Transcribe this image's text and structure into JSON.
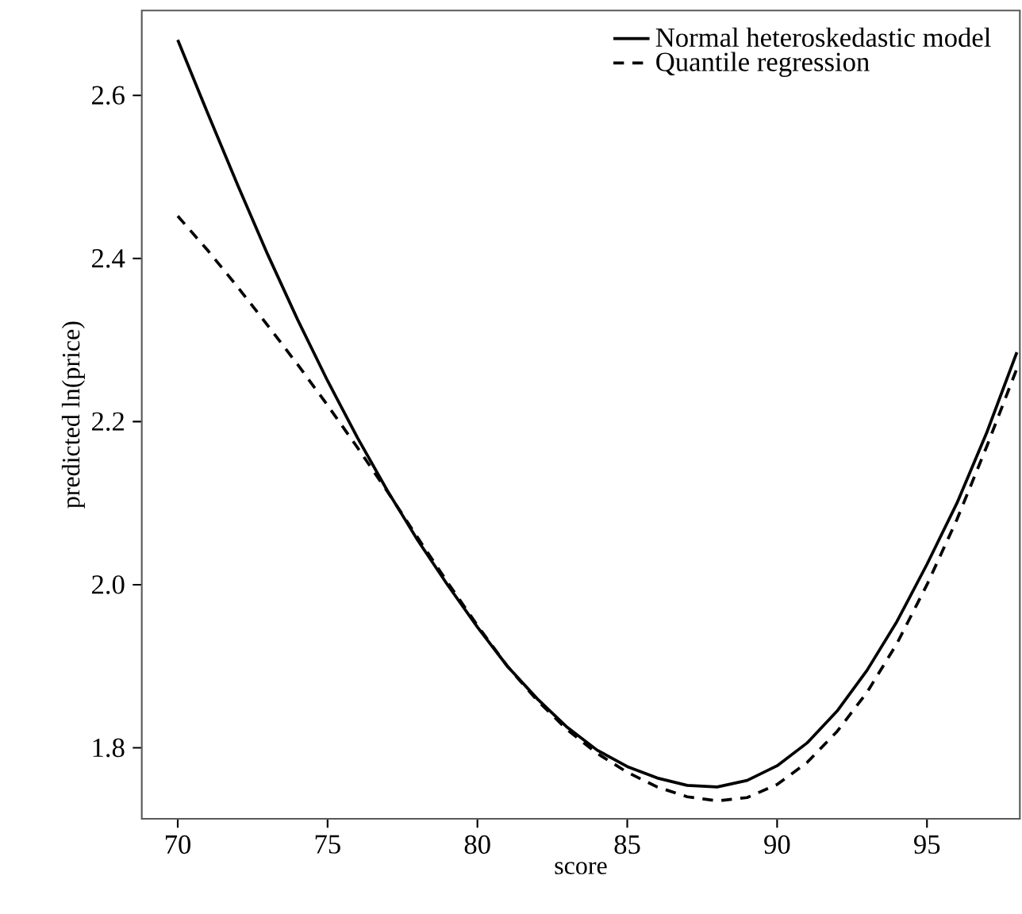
{
  "chart_data": {
    "type": "line",
    "xlabel": "score",
    "ylabel": "predicted ln(price)",
    "xlim": [
      68.8,
      98.1
    ],
    "ylim": [
      1.713,
      2.704
    ],
    "xticks": [
      70,
      75,
      80,
      85,
      90,
      95
    ],
    "yticks": [
      1.8,
      {
        "value": 2,
        "label": "2.0"
      },
      2.2,
      2.4,
      2.6
    ],
    "legend": "top right",
    "grid": false,
    "series": [
      {
        "name": "Normal heteroskedastic model",
        "color": "#000000",
        "line_style": "solid",
        "x": [
          70,
          71,
          72,
          73,
          74,
          75,
          76,
          77,
          78,
          79,
          80,
          81,
          82,
          83,
          84,
          85,
          86,
          87,
          88,
          89,
          90,
          91,
          92,
          93,
          94,
          95,
          96,
          97,
          98
        ],
        "values": [
          2.668,
          2.578,
          2.49,
          2.405,
          2.325,
          2.25,
          2.18,
          2.115,
          2.055,
          2.0,
          1.948,
          1.9,
          1.86,
          1.825,
          1.797,
          1.777,
          1.763,
          1.754,
          1.752,
          1.76,
          1.778,
          1.806,
          1.845,
          1.895,
          1.955,
          2.025,
          2.1,
          2.187,
          2.285
        ]
      },
      {
        "name": "Quantile regression",
        "color": "#000000",
        "line_style": "dashed",
        "x": [
          70,
          71,
          72,
          73,
          74,
          75,
          76,
          77,
          78,
          79,
          80,
          81,
          82,
          83,
          84,
          85,
          86,
          87,
          88,
          89,
          90,
          91,
          92,
          93,
          94,
          95,
          96,
          97,
          98
        ],
        "values": [
          2.452,
          2.41,
          2.365,
          2.318,
          2.27,
          2.22,
          2.168,
          2.114,
          2.058,
          2.003,
          1.95,
          1.9,
          1.858,
          1.822,
          1.793,
          1.77,
          1.752,
          1.74,
          1.735,
          1.739,
          1.755,
          1.782,
          1.82,
          1.868,
          1.928,
          2.0,
          2.08,
          2.17,
          2.265
        ]
      }
    ]
  }
}
